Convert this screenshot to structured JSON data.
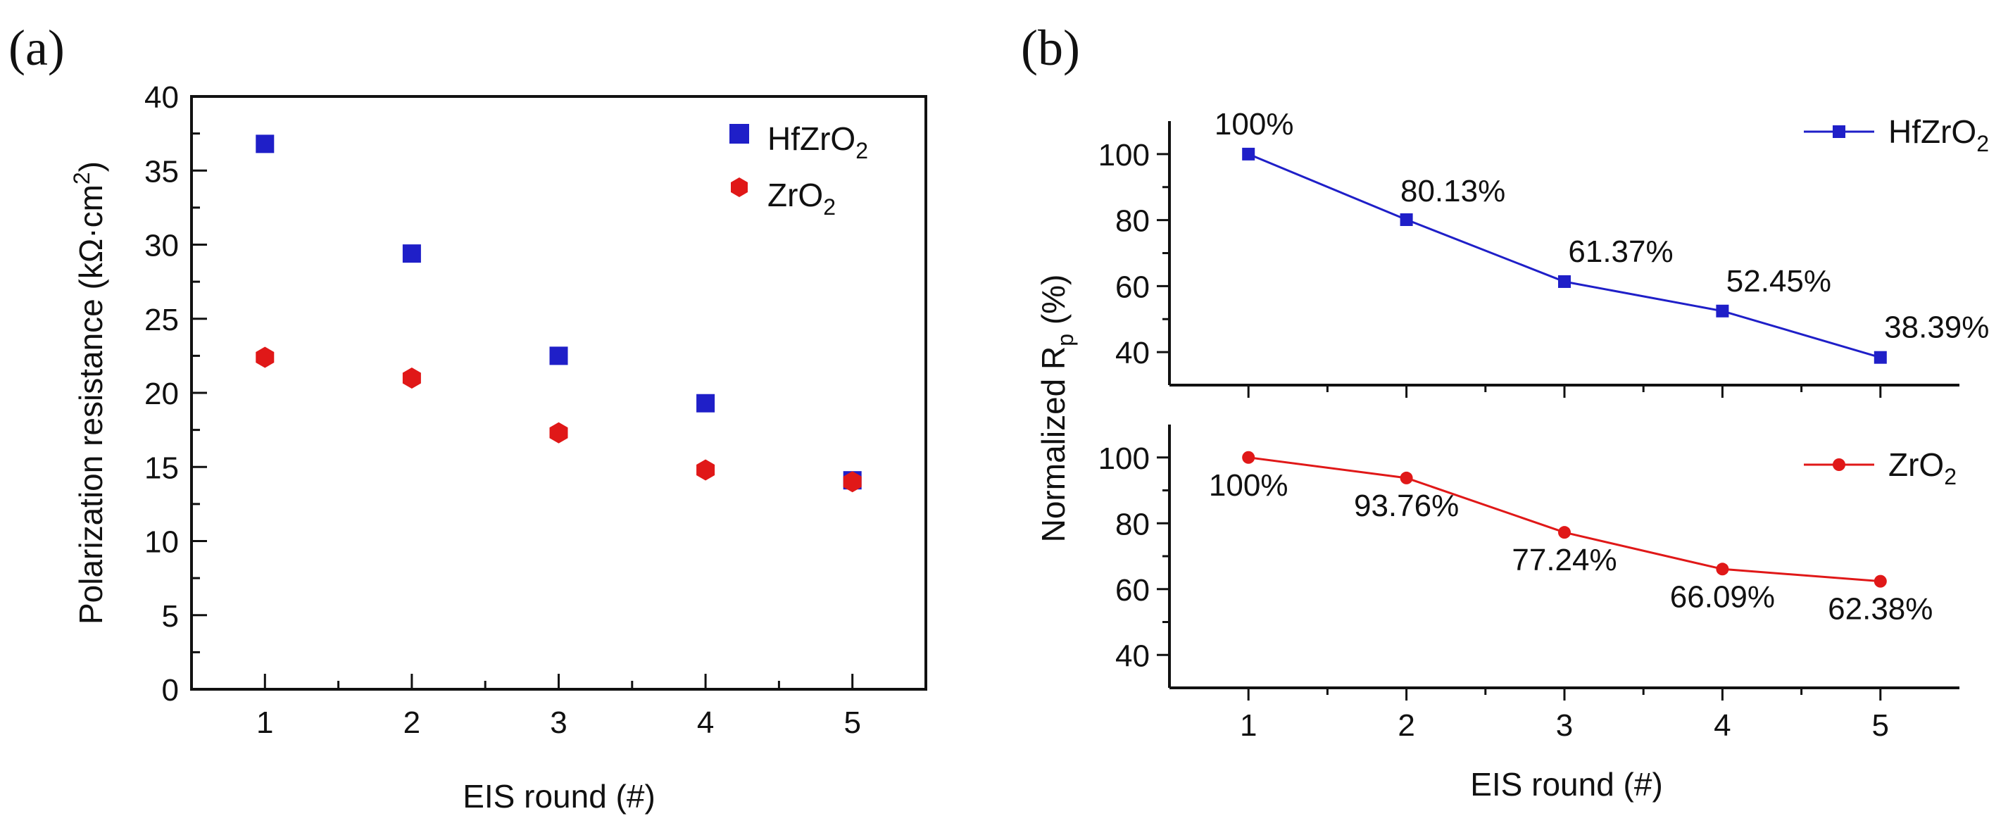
{
  "chart_data": [
    {
      "panel_label": "(a)",
      "type": "scatter",
      "xlabel": "EIS round (#)",
      "ylabel": "Polarization resistance (kΩ·cm²)",
      "ylabel_parts": {
        "main": "Polarization resistance (kΩ·cm",
        "sup": "2",
        "end": ")"
      },
      "xlim": [
        0.5,
        5.5
      ],
      "ylim": [
        0,
        40
      ],
      "x_ticks": [
        1,
        2,
        3,
        4,
        5
      ],
      "y_ticks": [
        0,
        5,
        10,
        15,
        20,
        25,
        30,
        35,
        40
      ],
      "legend_position": "top-right",
      "x": [
        1,
        2,
        3,
        4,
        5
      ],
      "series": [
        {
          "name": "HfZrO2",
          "label_main": "HfZrO",
          "label_sub": "2",
          "marker": "square",
          "color": "#1f1fc8",
          "values": [
            36.8,
            29.4,
            22.5,
            19.3,
            14.1
          ]
        },
        {
          "name": "ZrO2",
          "label_main": "ZrO",
          "label_sub": "2",
          "marker": "hexagon",
          "color": "#e01818",
          "values": [
            22.4,
            21.0,
            17.3,
            14.8,
            14.0
          ]
        }
      ]
    },
    {
      "panel_label": "(b)",
      "type": "line",
      "xlabel": "EIS round (#)",
      "ylabel": "Normalized Rp (%)",
      "ylabel_parts": {
        "main": "Normalized R",
        "sub": "p",
        "end": " (%)"
      },
      "xlim": [
        0.5,
        5.5
      ],
      "x_ticks": [
        1,
        2,
        3,
        4,
        5
      ],
      "x": [
        1,
        2,
        3,
        4,
        5
      ],
      "subplots": [
        {
          "ylim": [
            30,
            110
          ],
          "y_ticks": [
            40,
            60,
            80,
            100
          ],
          "legend_position": "top-right",
          "series": [
            {
              "name": "HfZrO2",
              "label_main": "HfZrO",
              "label_sub": "2",
              "marker": "square",
              "color": "#1f1fc8",
              "values": [
                100,
                80.13,
                61.37,
                52.45,
                38.39
              ],
              "data_labels": [
                "100%",
                "80.13%",
                "61.37%",
                "52.45%",
                "38.39%"
              ]
            }
          ]
        },
        {
          "ylim": [
            30,
            110
          ],
          "y_ticks": [
            40,
            60,
            80,
            100
          ],
          "legend_position": "top-right",
          "series": [
            {
              "name": "ZrO2",
              "label_main": "ZrO",
              "label_sub": "2",
              "marker": "circle",
              "color": "#e01818",
              "values": [
                100,
                93.76,
                77.24,
                66.09,
                62.38
              ],
              "data_labels": [
                "100%",
                "93.76%",
                "77.24%",
                "66.09%",
                "62.38%"
              ]
            }
          ]
        }
      ]
    }
  ]
}
